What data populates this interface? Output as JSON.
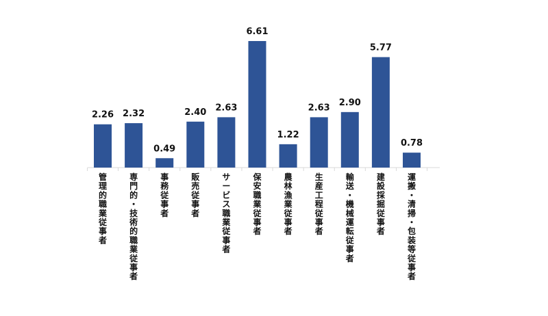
{
  "chart_data": {
    "type": "bar",
    "categories": [
      "管理的職業従事者",
      "専門的・技術的職業従事者",
      "事務従事者",
      "販売従事者",
      "サービス職業従事者",
      "保安職業従事者",
      "農林漁業従事者",
      "生産工程従事者",
      "輸送・機械運転従事者",
      "建設採掘従事者",
      "運搬・清掃・包装等従事者"
    ],
    "values": [
      2.26,
      2.32,
      0.49,
      2.4,
      2.63,
      6.61,
      1.22,
      2.63,
      2.9,
      5.77,
      0.78
    ],
    "value_labels": [
      "2.26",
      "2.32",
      "0.49",
      "2.40",
      "2.63",
      "6.61",
      "1.22",
      "2.63",
      "2.90",
      "5.77",
      "0.78"
    ],
    "ylim": [
      0,
      6.61
    ],
    "grid": false,
    "legend": "none",
    "colors": {
      "bar": "#2E5496",
      "axis": "#d9d9d9",
      "text": "#111111"
    }
  }
}
